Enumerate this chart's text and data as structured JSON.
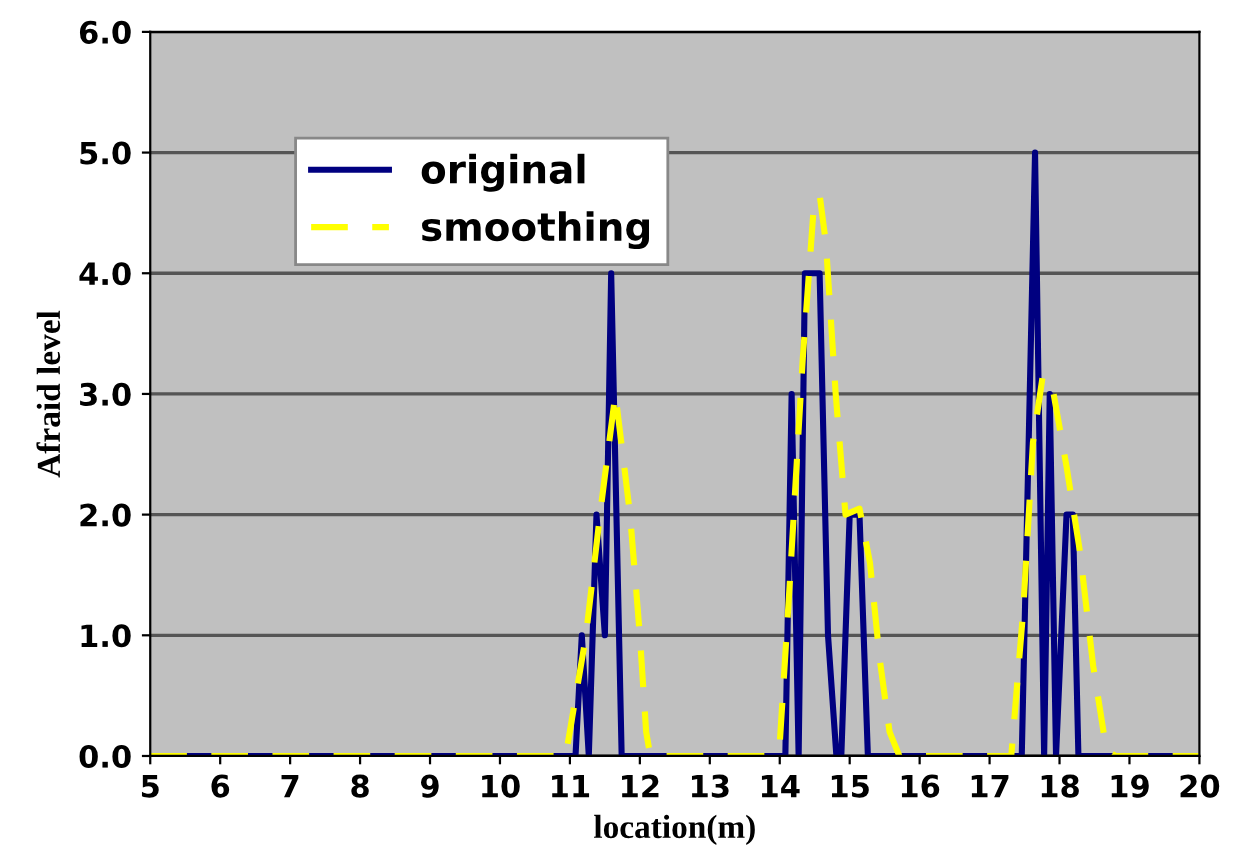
{
  "chart_data": {
    "type": "line",
    "xlabel": "location(m)",
    "ylabel": "Afraid level",
    "xlim": [
      5,
      20
    ],
    "ylim": [
      0,
      6
    ],
    "xticks": [
      5,
      6,
      7,
      8,
      9,
      10,
      11,
      12,
      13,
      14,
      15,
      16,
      17,
      18,
      19,
      20
    ],
    "yticks": [
      {
        "value": 0,
        "label": "0.0"
      },
      {
        "value": 1,
        "label": "1.0"
      },
      {
        "value": 2,
        "label": "2.0"
      },
      {
        "value": 3,
        "label": "3.0"
      },
      {
        "value": 4,
        "label": "4.0"
      },
      {
        "value": 5,
        "label": "5.0"
      },
      {
        "value": 6,
        "label": "6.0"
      }
    ],
    "grid": "y",
    "legend": "top left",
    "marker": "none",
    "series": [
      {
        "name": "original",
        "color": "#000080",
        "line_style": "solid",
        "x": [
          5,
          11.08,
          11.17,
          11.27,
          11.38,
          11.5,
          11.59,
          11.74,
          14.08,
          14.17,
          14.27,
          14.36,
          14.57,
          14.69,
          14.81,
          14.88,
          15.0,
          15.14,
          15.26,
          17.46,
          17.65,
          17.78,
          17.86,
          17.95,
          18.1,
          18.19,
          18.27,
          20
        ],
        "values": [
          0,
          0,
          1,
          0,
          2,
          1,
          4,
          0,
          0,
          3,
          0,
          4,
          4,
          1,
          0,
          0,
          2,
          2,
          0,
          0,
          5,
          0,
          3,
          0,
          2,
          2,
          0,
          0
        ]
      },
      {
        "name": "smoothing",
        "color": "#ffff00",
        "line_style": "dashed",
        "x": [
          5,
          10.94,
          11.23,
          11.43,
          11.65,
          11.86,
          12.0,
          12.09,
          12.15,
          13.81,
          14.0,
          14.14,
          14.33,
          14.48,
          14.57,
          14.66,
          14.8,
          14.94,
          15.14,
          15.29,
          15.43,
          15.57,
          15.71,
          17.31,
          17.48,
          17.62,
          17.76,
          17.9,
          18.1,
          18.29,
          18.48,
          18.67,
          18.8,
          20
        ],
        "values": [
          0,
          0,
          1,
          2,
          3,
          2,
          1,
          0.2,
          0,
          0,
          0.1,
          1.4,
          3.3,
          4.5,
          4.65,
          4.25,
          3,
          2,
          2.05,
          1.6,
          0.8,
          0.2,
          0,
          0,
          1.2,
          2.6,
          3.15,
          3.05,
          2.4,
          1.7,
          0.75,
          0.05,
          0,
          0
        ]
      }
    ]
  }
}
